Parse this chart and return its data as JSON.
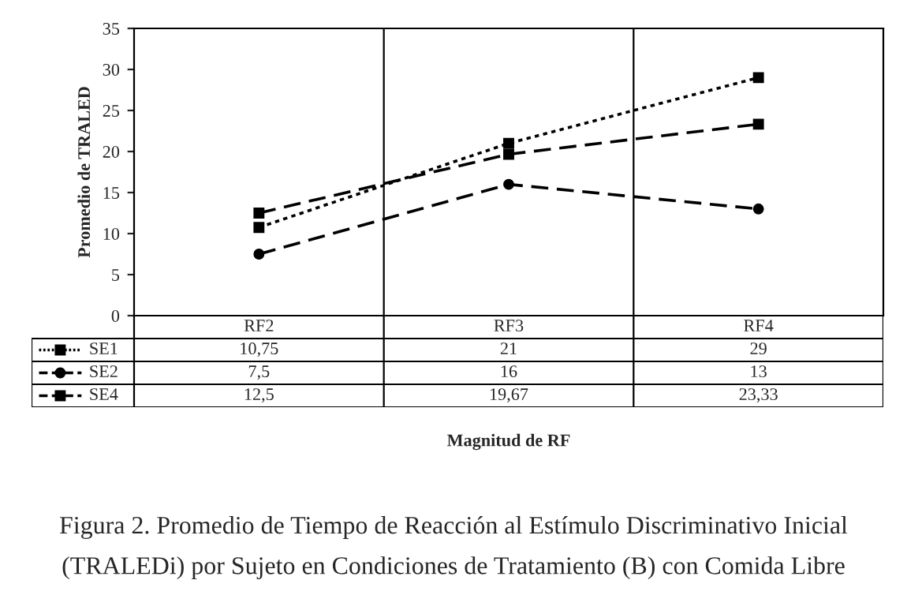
{
  "chart_data": {
    "type": "line",
    "ylabel": "Promedio de TRALED",
    "categories": [
      "RF2",
      "RF3",
      "RF4"
    ],
    "series": [
      {
        "name": "SE1",
        "color": "#000000",
        "values": [
          10.75,
          21,
          29
        ],
        "marker": "square",
        "line_style": "dotted",
        "value_labels": [
          "10,75",
          "21",
          "29"
        ]
      },
      {
        "name": "SE2",
        "color": "#000000",
        "values": [
          7.5,
          16,
          13
        ],
        "marker": "circle",
        "line_style": "dashed",
        "value_labels": [
          "7,5",
          "16",
          "13"
        ]
      },
      {
        "name": "SE4",
        "color": "#000000",
        "values": [
          12.5,
          19.67,
          23.33
        ],
        "marker": "square",
        "line_style": "dashed",
        "value_labels": [
          "12,5",
          "19,67",
          "23,33"
        ]
      }
    ],
    "ylim": [
      0,
      35
    ],
    "yticks": [
      0,
      5,
      10,
      15,
      20,
      25,
      30,
      35
    ],
    "grid": "x",
    "legend": "bottom",
    "data_labels": true,
    "annotations": [
      "Magnitud de RF",
      "Figura 2. Promedio de Tiempo de Reacción al Estímulo Discriminativo Inicial (TRALEDi) por Sujeto en Condiciones de Tratamiento (B) con Comida Libre"
    ]
  }
}
